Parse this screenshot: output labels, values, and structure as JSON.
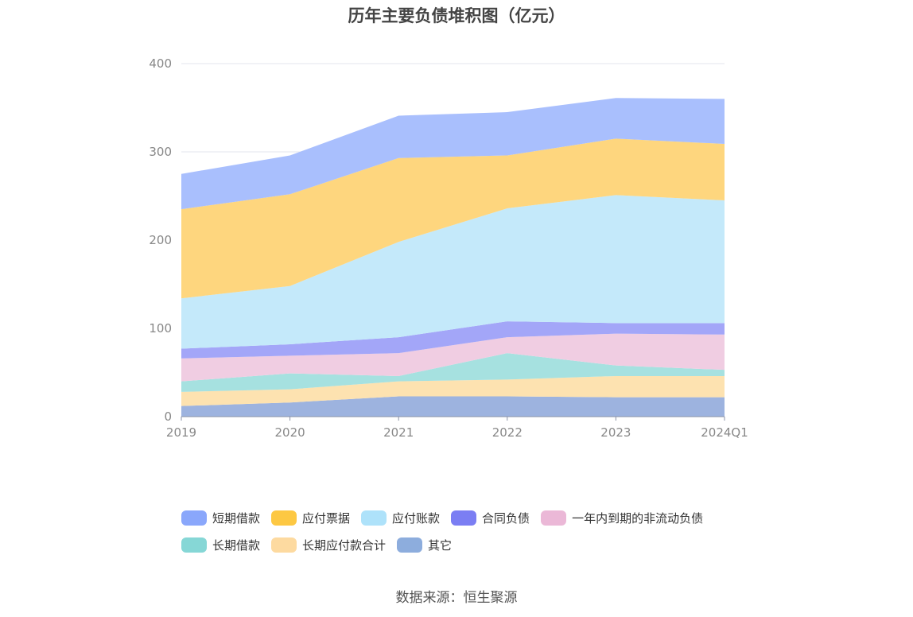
{
  "chart_data": {
    "type": "area",
    "stacked": true,
    "title": "历年主要负债堆积图（亿元）",
    "categories": [
      "2019",
      "2020",
      "2021",
      "2022",
      "2023",
      "2024Q1"
    ],
    "ylim": [
      0,
      400
    ],
    "yticks": [
      0,
      100,
      200,
      300,
      400
    ],
    "grid": true,
    "legend_position": "bottom",
    "series": [
      {
        "name": "其它",
        "color": "#9db3df",
        "values": [
          12,
          16,
          23,
          23,
          22,
          22
        ]
      },
      {
        "name": "长期应付款合计",
        "color": "#fde2b0",
        "values": [
          16,
          15,
          17,
          19,
          24,
          24
        ]
      },
      {
        "name": "长期借款",
        "color": "#a6e1e0",
        "values": [
          12,
          18,
          6,
          30,
          12,
          7
        ]
      },
      {
        "name": "一年内到期的非流动负债",
        "color": "#f0cde2",
        "values": [
          26,
          20,
          26,
          18,
          36,
          40
        ]
      },
      {
        "name": "合同负债",
        "color": "#a3a6f8",
        "values": [
          11,
          13,
          18,
          18,
          12,
          13
        ]
      },
      {
        "name": "应付账款",
        "color": "#c4e9fa",
        "values": [
          57,
          66,
          108,
          128,
          145,
          139
        ]
      },
      {
        "name": "应付票据",
        "color": "#fed67e",
        "values": [
          101,
          104,
          95,
          60,
          64,
          64
        ]
      },
      {
        "name": "短期借款",
        "color": "#a9bffd",
        "values": [
          40,
          44,
          48,
          49,
          46,
          51
        ]
      }
    ]
  },
  "legend": [
    {
      "label": "短期借款",
      "color": "#8aa7fb"
    },
    {
      "label": "应付票据",
      "color": "#fdc843"
    },
    {
      "label": "应付账款",
      "color": "#aee2fa"
    },
    {
      "label": "合同负债",
      "color": "#7b7ef3"
    },
    {
      "label": "一年内到期的非流动负债",
      "color": "#ebb8d7"
    },
    {
      "label": "长期借款",
      "color": "#86d7d6"
    },
    {
      "label": "长期应付款合计",
      "color": "#fddaa0"
    },
    {
      "label": "其它",
      "color": "#8daddd"
    }
  ],
  "source": "数据来源：恒生聚源"
}
